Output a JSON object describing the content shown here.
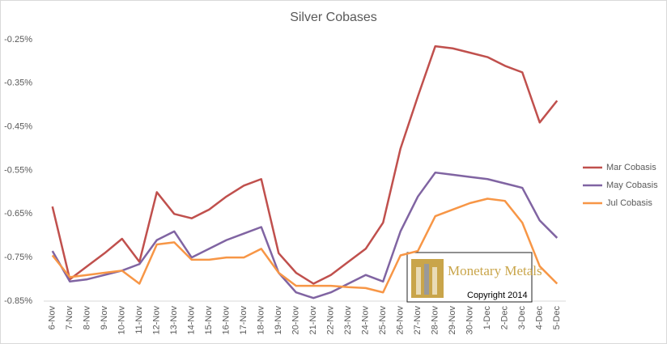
{
  "chart_data": {
    "type": "line",
    "title": "Silver Cobases",
    "categories": [
      "6-Nov",
      "7-Nov",
      "8-Nov",
      "9-Nov",
      "10-Nov",
      "11-Nov",
      "12-Nov",
      "13-Nov",
      "14-Nov",
      "15-Nov",
      "16-Nov",
      "17-Nov",
      "18-Nov",
      "19-Nov",
      "20-Nov",
      "21-Nov",
      "22-Nov",
      "23-Nov",
      "24-Nov",
      "25-Nov",
      "26-Nov",
      "27-Nov",
      "28-Nov",
      "29-Nov",
      "30-Nov",
      "1-Dec",
      "2-Dec",
      "3-Dec",
      "4-Dec",
      "5-Dec"
    ],
    "series": [
      {
        "name": "Mar Cobasis",
        "color": "#c0504d",
        "values": [
          -0.633,
          -0.8,
          -0.77,
          -0.74,
          -0.707,
          -0.76,
          -0.6,
          -0.65,
          -0.66,
          -0.64,
          -0.61,
          -0.585,
          -0.57,
          -0.74,
          -0.785,
          -0.81,
          -0.79,
          -0.76,
          -0.73,
          -0.67,
          -0.5,
          -0.38,
          -0.265,
          -0.27,
          -0.28,
          -0.29,
          -0.31,
          -0.325,
          -0.44,
          -0.39
        ]
      },
      {
        "name": "May Cobasis",
        "color": "#8064a2",
        "values": [
          -0.735,
          -0.805,
          -0.8,
          -0.79,
          -0.78,
          -0.765,
          -0.71,
          -0.69,
          -0.75,
          -0.73,
          -0.71,
          -0.695,
          -0.68,
          -0.785,
          -0.83,
          -0.843,
          -0.83,
          -0.81,
          -0.79,
          -0.805,
          -0.69,
          -0.61,
          -0.555,
          -0.56,
          -0.565,
          -0.57,
          -0.58,
          -0.59,
          -0.665,
          -0.705
        ]
      },
      {
        "name": "Jul Cobasis",
        "color": "#f79646",
        "values": [
          -0.745,
          -0.795,
          -0.79,
          -0.785,
          -0.78,
          -0.81,
          -0.72,
          -0.715,
          -0.755,
          -0.755,
          -0.75,
          -0.75,
          -0.73,
          -0.785,
          -0.815,
          -0.815,
          -0.815,
          -0.818,
          -0.82,
          -0.83,
          -0.745,
          -0.735,
          -0.655,
          -0.64,
          -0.625,
          -0.615,
          -0.62,
          -0.67,
          -0.77,
          -0.81
        ]
      }
    ],
    "ylim": [
      -0.85,
      -0.25
    ],
    "yticks": [
      {
        "value": -0.85,
        "label": "-0.85%"
      },
      {
        "value": -0.75,
        "label": "-0.75%"
      },
      {
        "value": -0.65,
        "label": "-0.65%"
      },
      {
        "value": -0.55,
        "label": "-0.55%"
      },
      {
        "value": -0.45,
        "label": "-0.45%"
      },
      {
        "value": -0.35,
        "label": "-0.35%"
      },
      {
        "value": -0.25,
        "label": "-0.25%"
      }
    ],
    "grid": false,
    "legend": "right",
    "annotations": [
      "Monetary Metals",
      "Copyright 2014"
    ]
  }
}
